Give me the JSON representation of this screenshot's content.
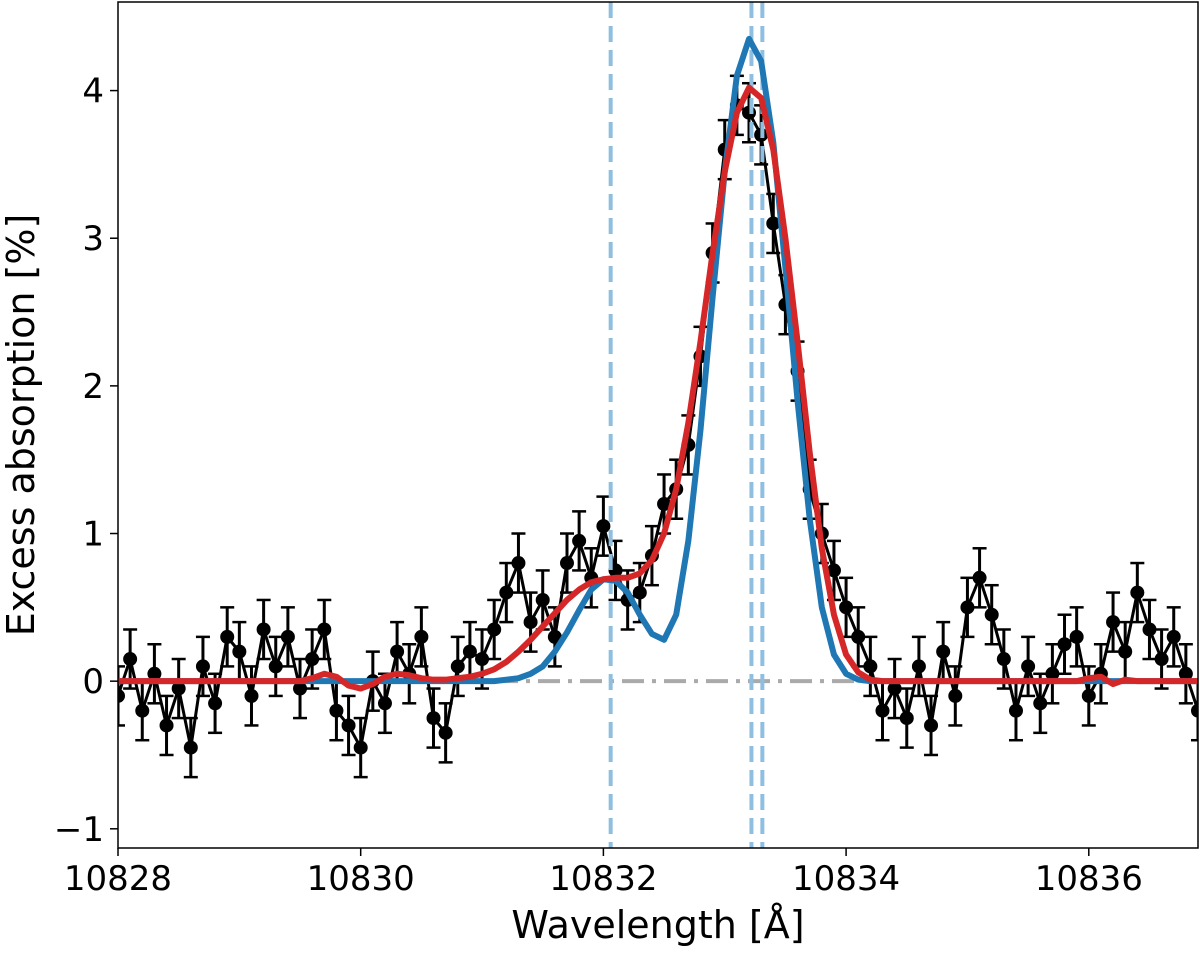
{
  "chart_data": {
    "type": "errorbar",
    "xlabel": "Wavelength [Å]",
    "ylabel": "Excess absorption [%]",
    "xlim": [
      10828,
      10836.9
    ],
    "ylim": [
      -1.13,
      4.6
    ],
    "xticks": [
      10828,
      10830,
      10832,
      10834,
      10836
    ],
    "yticks": [
      {
        "value": -1,
        "label": "−1"
      },
      0,
      1,
      2,
      3,
      4
    ],
    "vlines": [
      10832.06,
      10833.22,
      10833.31
    ],
    "vline_color": "#8fbfe0",
    "hlines": [
      0
    ],
    "hline_color": "#aaaaaa",
    "x": [
      10828.0,
      10828.1,
      10828.2,
      10828.3,
      10828.4,
      10828.5,
      10828.6,
      10828.7,
      10828.8,
      10828.9,
      10829.0,
      10829.1,
      10829.2,
      10829.3,
      10829.4,
      10829.5,
      10829.6,
      10829.7,
      10829.8,
      10829.9,
      10830.0,
      10830.1,
      10830.2,
      10830.3,
      10830.4,
      10830.5,
      10830.6,
      10830.7,
      10830.8,
      10830.9,
      10831.0,
      10831.1,
      10831.2,
      10831.3,
      10831.4,
      10831.5,
      10831.6,
      10831.7,
      10831.8,
      10831.9,
      10832.0,
      10832.1,
      10832.2,
      10832.3,
      10832.4,
      10832.5,
      10832.6,
      10832.7,
      10832.8,
      10832.9,
      10833.0,
      10833.1,
      10833.2,
      10833.3,
      10833.4,
      10833.5,
      10833.6,
      10833.7,
      10833.8,
      10833.9,
      10834.0,
      10834.1,
      10834.2,
      10834.3,
      10834.4,
      10834.5,
      10834.6,
      10834.7,
      10834.8,
      10834.9,
      10835.0,
      10835.1,
      10835.2,
      10835.3,
      10835.4,
      10835.5,
      10835.6,
      10835.7,
      10835.8,
      10835.9,
      10836.0,
      10836.1,
      10836.2,
      10836.3,
      10836.4,
      10836.5,
      10836.6,
      10836.7,
      10836.8,
      10836.9
    ],
    "series": [
      {
        "kind": "errorbar",
        "color": "#000000",
        "error": 0.2,
        "values": [
          -0.1,
          0.15,
          -0.2,
          0.05,
          -0.3,
          -0.05,
          -0.45,
          0.1,
          -0.15,
          0.3,
          0.2,
          -0.1,
          0.35,
          0.1,
          0.3,
          -0.05,
          0.15,
          0.35,
          -0.2,
          -0.3,
          -0.45,
          0.0,
          -0.15,
          0.2,
          0.05,
          0.3,
          -0.25,
          -0.35,
          0.1,
          0.2,
          0.15,
          0.35,
          0.6,
          0.8,
          0.4,
          0.55,
          0.3,
          0.8,
          0.95,
          0.7,
          1.05,
          0.75,
          0.55,
          0.6,
          0.85,
          1.2,
          1.3,
          1.6,
          2.2,
          2.9,
          3.6,
          3.9,
          3.85,
          3.7,
          3.1,
          2.55,
          2.1,
          1.3,
          1.0,
          0.75,
          0.5,
          0.3,
          0.1,
          -0.2,
          -0.05,
          -0.25,
          0.1,
          -0.3,
          0.2,
          -0.1,
          0.5,
          0.7,
          0.45,
          0.15,
          -0.2,
          0.1,
          -0.15,
          0.05,
          0.25,
          0.3,
          -0.1,
          0.05,
          0.4,
          0.2,
          0.6,
          0.35,
          0.15,
          0.3,
          0.05,
          -0.2
        ]
      },
      {
        "kind": "line",
        "color": "#1f77b4",
        "values": [
          0,
          0,
          0,
          0,
          0,
          0,
          0,
          0,
          0,
          0,
          0,
          0,
          0,
          0,
          0,
          0,
          0,
          0,
          0,
          0,
          0,
          0,
          0,
          0,
          0,
          0,
          0,
          0,
          0,
          0,
          0,
          0,
          0.01,
          0.02,
          0.05,
          0.1,
          0.2,
          0.33,
          0.48,
          0.62,
          0.69,
          0.68,
          0.6,
          0.45,
          0.32,
          0.28,
          0.45,
          0.95,
          1.7,
          2.6,
          3.45,
          4.1,
          4.35,
          4.2,
          3.65,
          2.8,
          1.9,
          1.1,
          0.5,
          0.18,
          0.05,
          0.01,
          0,
          0,
          0,
          0,
          0,
          0,
          0,
          0,
          0,
          0,
          0,
          0,
          0,
          0,
          0,
          0,
          0,
          0,
          0,
          0,
          0,
          0,
          0,
          0,
          0,
          0,
          0,
          0
        ]
      },
      {
        "kind": "line",
        "color": "#d62728",
        "values": [
          0,
          0,
          0,
          0,
          0,
          0,
          0,
          0,
          0,
          0,
          0,
          0,
          0,
          0,
          0,
          0,
          0.02,
          0.05,
          0.03,
          -0.03,
          -0.05,
          -0.02,
          0.03,
          0.05,
          0.04,
          0.02,
          0.01,
          0.01,
          0.02,
          0.03,
          0.05,
          0.08,
          0.13,
          0.2,
          0.28,
          0.37,
          0.46,
          0.55,
          0.62,
          0.67,
          0.69,
          0.7,
          0.7,
          0.73,
          0.82,
          1.0,
          1.3,
          1.75,
          2.3,
          2.9,
          3.45,
          3.85,
          4.02,
          3.95,
          3.6,
          3.0,
          2.3,
          1.55,
          0.9,
          0.45,
          0.18,
          0.06,
          0.01,
          0,
          0,
          0,
          0,
          0,
          0,
          0,
          0,
          0,
          0,
          0,
          0,
          0,
          0,
          0,
          0,
          0,
          0.02,
          0.03,
          -0.02,
          0.01,
          0,
          0,
          0,
          0,
          0,
          0
        ]
      }
    ]
  }
}
